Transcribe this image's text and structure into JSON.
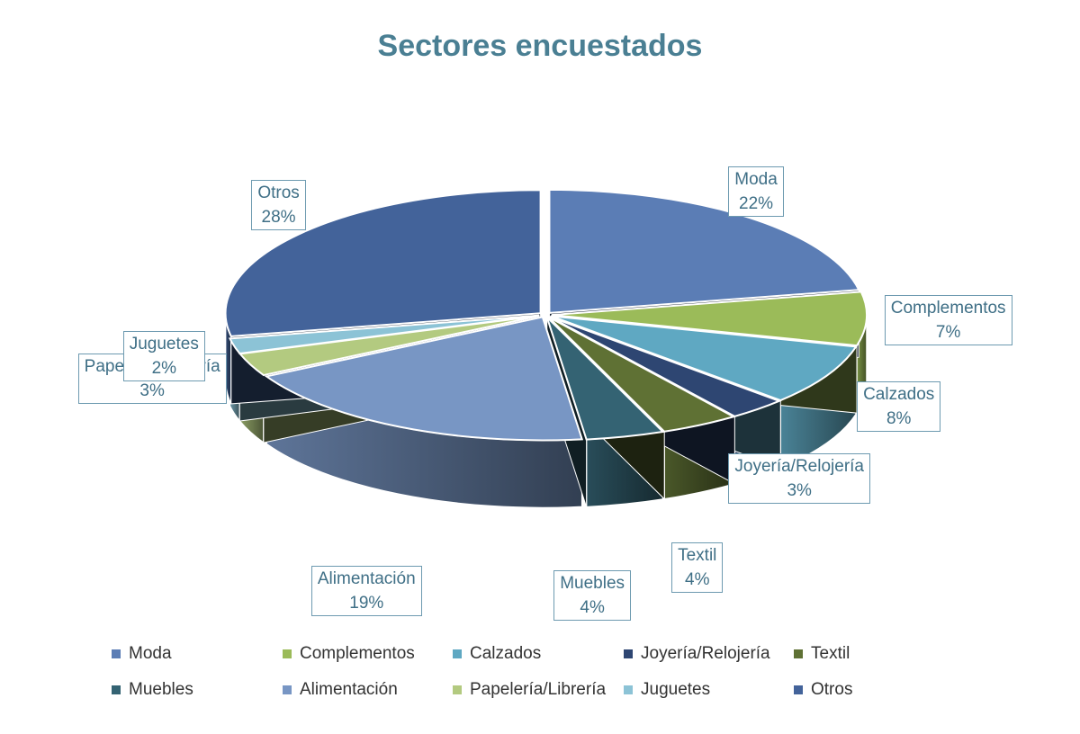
{
  "chart_data": {
    "type": "pie",
    "title": "Sectores encuestados",
    "categories": [
      "Moda",
      "Complementos",
      "Calzados",
      "Joyería/Relojería",
      "Textil",
      "Muebles",
      "Alimentación",
      "Papelería/Librería",
      "Juguetes",
      "Otros"
    ],
    "values": [
      22,
      7,
      8,
      3,
      4,
      4,
      19,
      3,
      2,
      28
    ],
    "value_labels": [
      "22%",
      "7%",
      "8%",
      "3%",
      "4%",
      "4%",
      "19%",
      "3%",
      "2%",
      "28%"
    ],
    "colors": [
      "#5b7db5",
      "#9bbb59",
      "#5fa8c2",
      "#2e4672",
      "#5f7134",
      "#346373",
      "#7896c4",
      "#b3ca80",
      "#8cc3d6",
      "#43639a"
    ],
    "legend_position": "bottom",
    "style": "3d-exploded"
  }
}
